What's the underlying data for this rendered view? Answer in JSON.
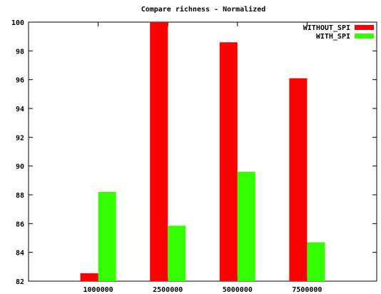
{
  "chart_data": {
    "type": "bar",
    "title": "Compare richness - Normalized",
    "xlabel": "",
    "ylabel": "",
    "categories": [
      "1000000",
      "2500000",
      "5000000",
      "7500000"
    ],
    "series": [
      {
        "name": "WITHOUT_SPI",
        "color": "#ff0000",
        "values": [
          82.55,
          100.0,
          98.6,
          96.1
        ]
      },
      {
        "name": "WITH_SPI",
        "color": "#33ff00",
        "values": [
          88.2,
          85.85,
          89.6,
          84.7
        ]
      }
    ],
    "ylim": [
      82,
      100
    ],
    "yticks": [
      82,
      84,
      86,
      88,
      90,
      92,
      94,
      96,
      98,
      100
    ],
    "grid": false,
    "legend": "top-right"
  }
}
